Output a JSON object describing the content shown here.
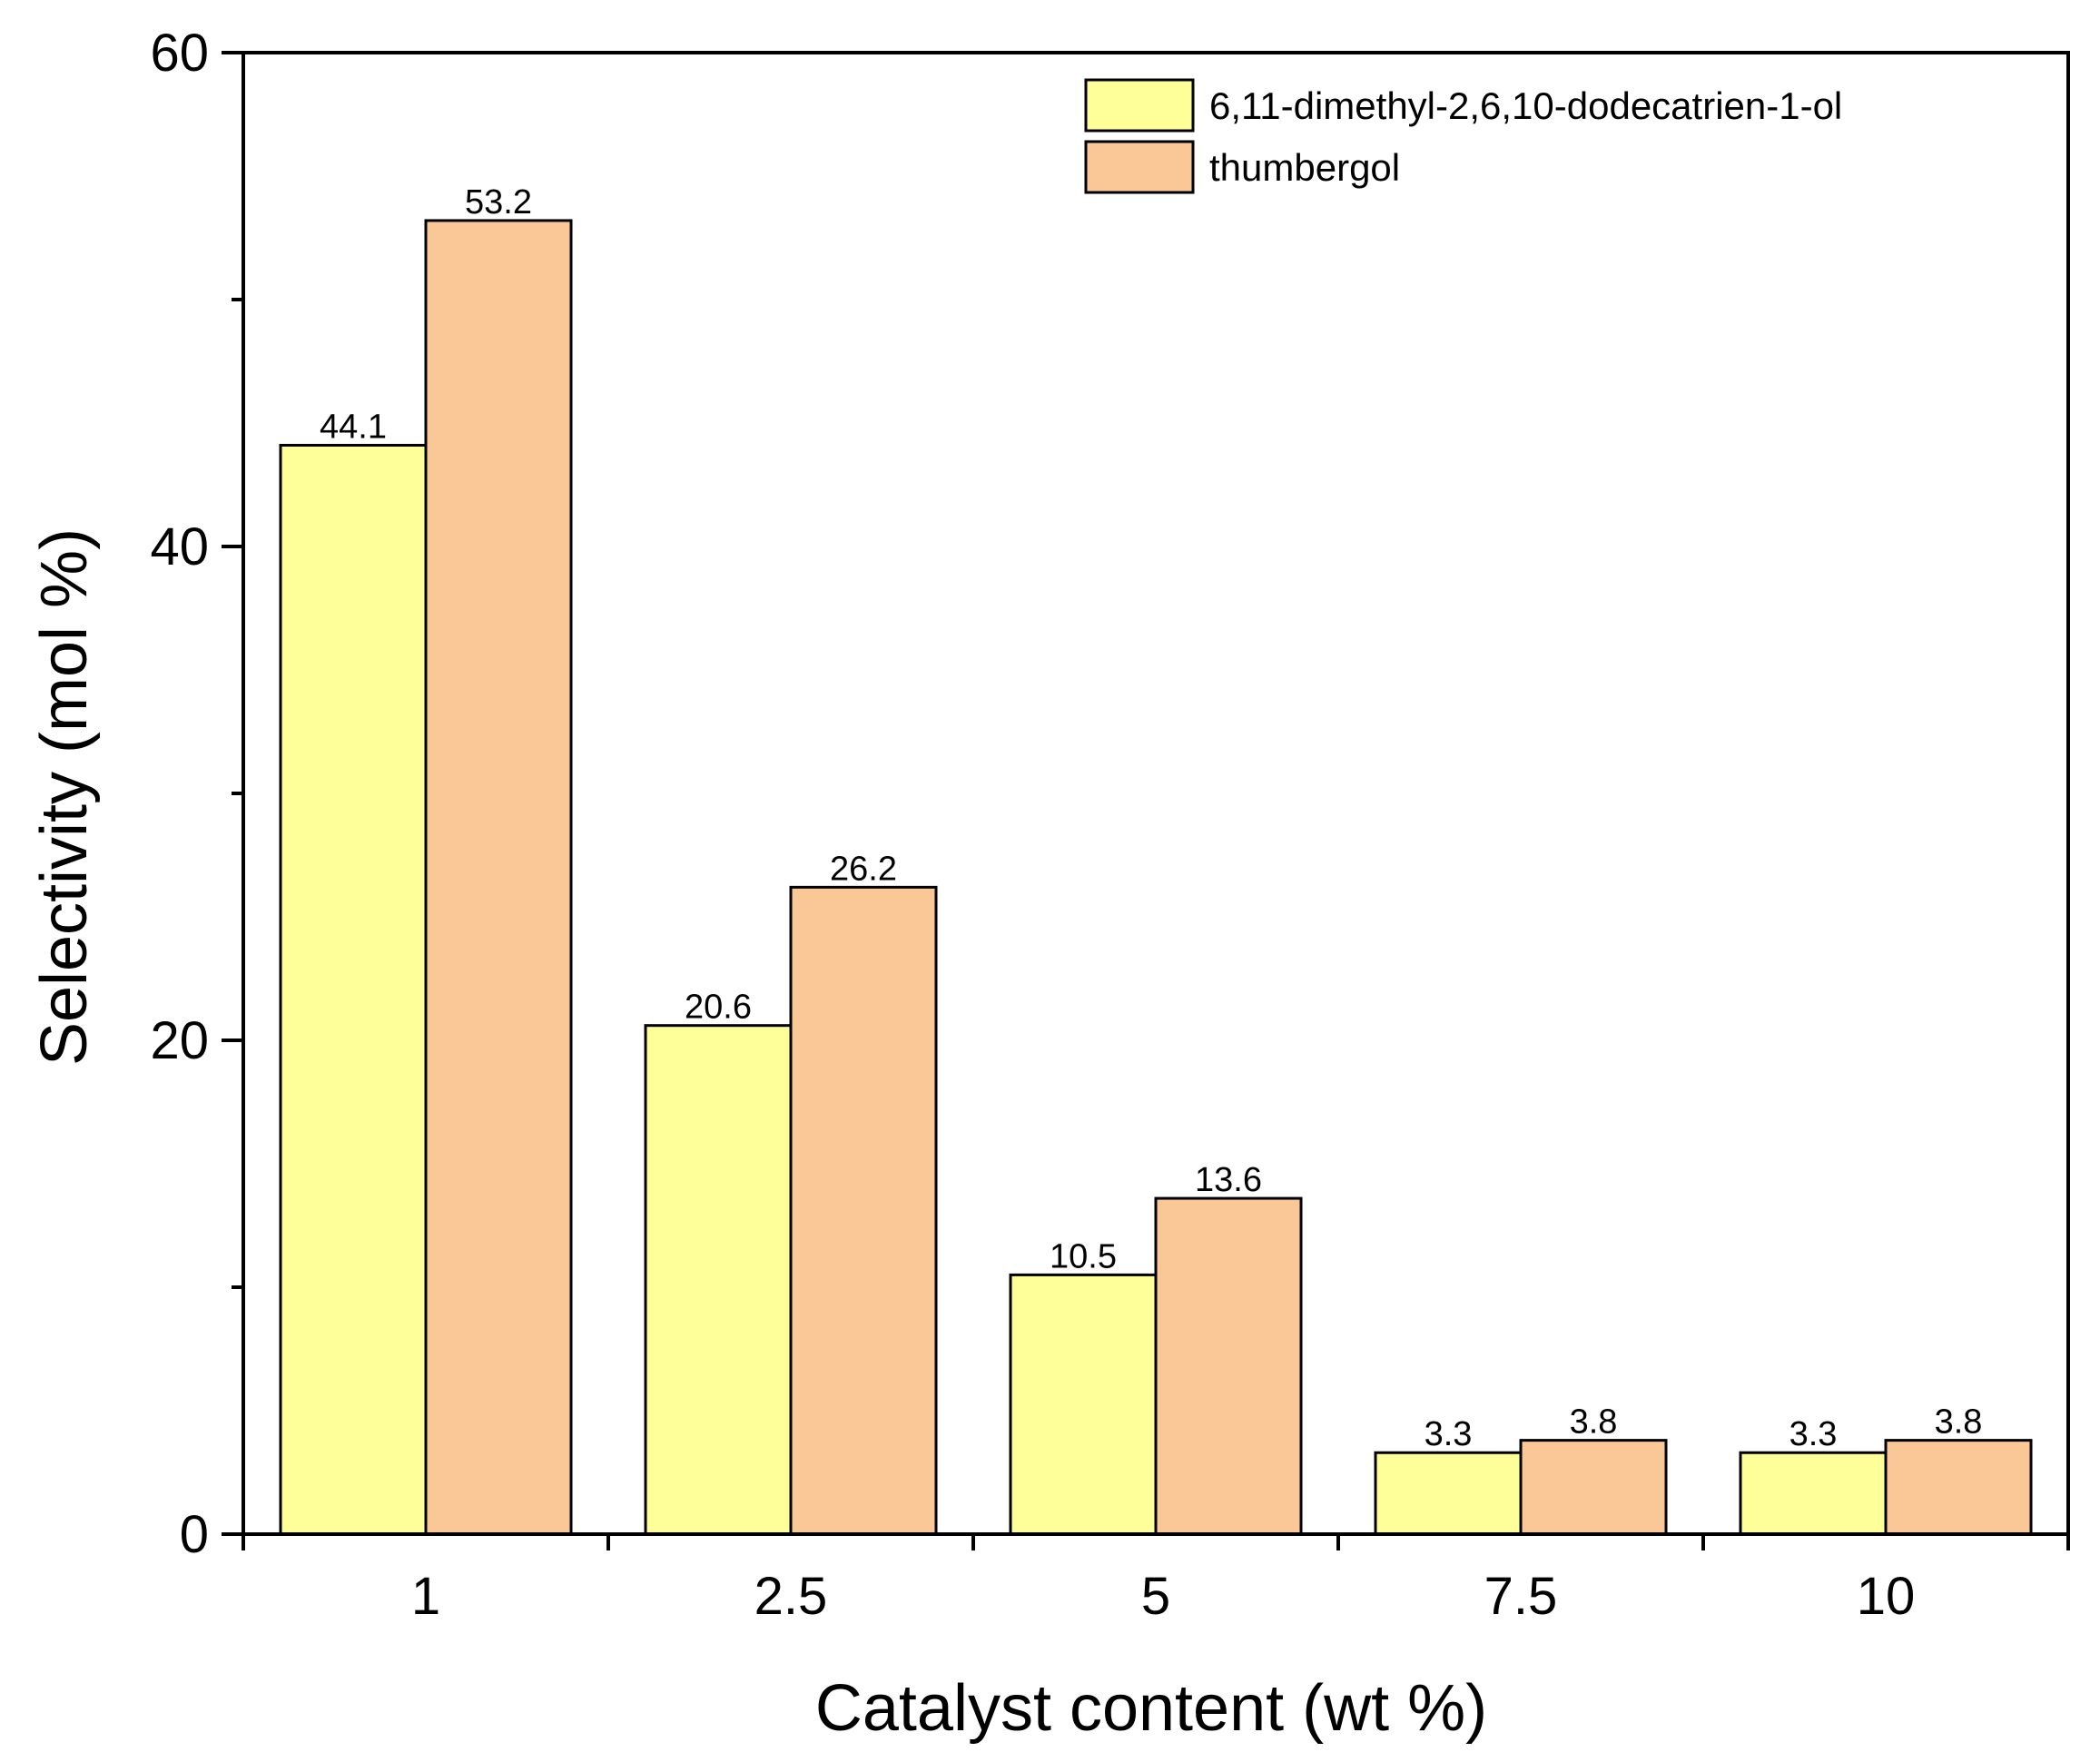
{
  "chart_data": {
    "type": "bar",
    "title": "",
    "xlabel": "Catalyst content (wt %)",
    "ylabel": "Selectivity (mol %)",
    "categories": [
      "1",
      "2.5",
      "5",
      "7.5",
      "10"
    ],
    "ylim": [
      0,
      60
    ],
    "yticks": [
      0,
      20,
      40,
      60
    ],
    "grid": false,
    "legend_position": "top-right",
    "series": [
      {
        "name": "6,11-dimethyl-2,6,10-dodecatrien-1-ol",
        "color": "#FFFF99",
        "values": [
          44.1,
          20.6,
          10.5,
          3.3,
          3.3
        ],
        "labels": [
          "44.1",
          "20.6",
          "10.5",
          "3.3",
          "3.3"
        ]
      },
      {
        "name": "thumbergol",
        "color": "#FAC896",
        "values": [
          53.2,
          26.2,
          13.6,
          3.8,
          3.8
        ],
        "labels": [
          "53.2",
          "26.2",
          "13.6",
          "3.8",
          "3.8"
        ]
      }
    ]
  }
}
